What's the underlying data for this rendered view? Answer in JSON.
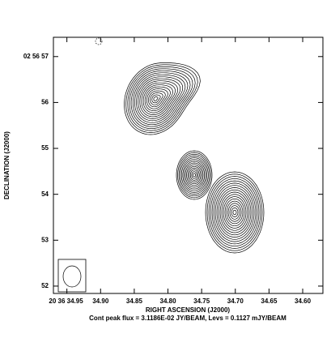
{
  "chart_data": {
    "type": "contour",
    "caption": "Cont peak flux =  3.1186E-02 JY/BEAM, Levs = 0.1127 mJY/BEAM",
    "xlabel": "RIGHT ASCENSION (J2000)",
    "ylabel": "DECLINATION (J2000)",
    "xlim": [
      34.97,
      34.57
    ],
    "ylim": [
      51.84,
      57.42
    ],
    "xticks": [
      {
        "value": 34.95,
        "label": "20 36 34.95"
      },
      {
        "value": 34.9,
        "label": "34.90"
      },
      {
        "value": 34.85,
        "label": "34.85"
      },
      {
        "value": 34.8,
        "label": "34.80"
      },
      {
        "value": 34.75,
        "label": "34.75"
      },
      {
        "value": 34.7,
        "label": "34.70"
      },
      {
        "value": 34.65,
        "label": "34.65"
      },
      {
        "value": 34.6,
        "label": "34.60"
      }
    ],
    "yticks": [
      {
        "value": 57,
        "label": "02 56 57"
      },
      56,
      55,
      54,
      53,
      52
    ]
  }
}
